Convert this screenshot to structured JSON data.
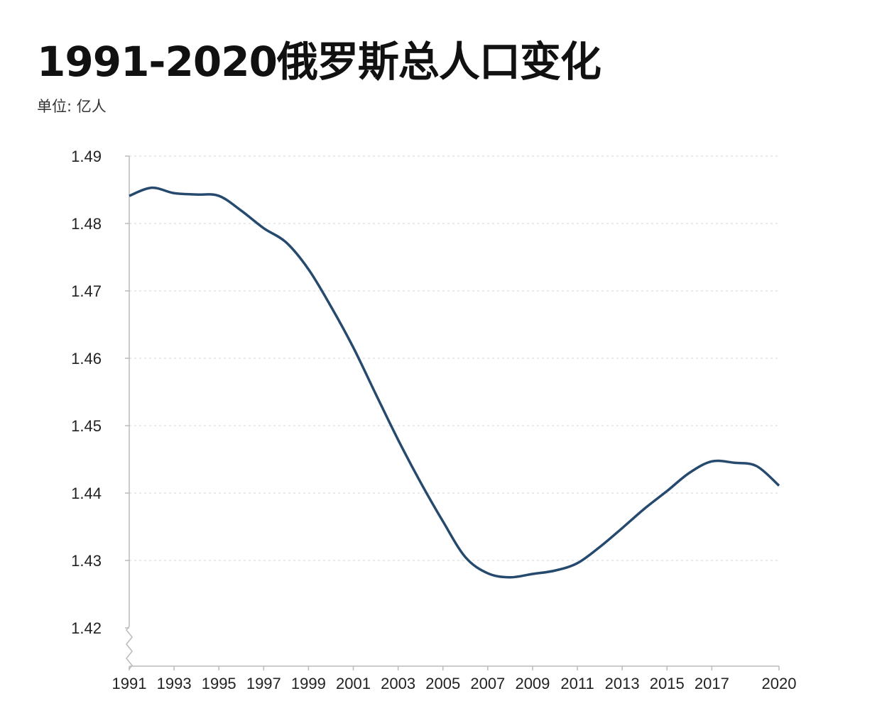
{
  "title": "1991-2020俄罗斯总人口变化",
  "unit_label": "单位: 亿人",
  "chart_data": {
    "type": "line",
    "title": "1991-2020俄罗斯总人口变化",
    "ylabel": "单位: 亿人",
    "xlabel": "",
    "x": [
      1991,
      1992,
      1993,
      1994,
      1995,
      1996,
      1997,
      1998,
      1999,
      2000,
      2001,
      2002,
      2003,
      2004,
      2005,
      2006,
      2007,
      2008,
      2009,
      2010,
      2011,
      2012,
      2013,
      2014,
      2015,
      2016,
      2017,
      2018,
      2019,
      2020
    ],
    "series": [
      {
        "name": "俄罗斯总人口",
        "color": "#264a6e",
        "values": [
          1.4841,
          1.4853,
          1.4845,
          1.4843,
          1.4841,
          1.4819,
          1.4793,
          1.4772,
          1.4732,
          1.4677,
          1.4616,
          1.4547,
          1.4479,
          1.4416,
          1.4358,
          1.4305,
          1.4281,
          1.4275,
          1.428,
          1.4285,
          1.4296,
          1.432,
          1.4348,
          1.4377,
          1.4403,
          1.443,
          1.4447,
          1.4445,
          1.444,
          1.4411
        ]
      }
    ],
    "xticks": [
      "1991",
      "1993",
      "1995",
      "1997",
      "1999",
      "2001",
      "2003",
      "2005",
      "2007",
      "2009",
      "2011",
      "2013",
      "2015",
      "2017",
      "2020"
    ],
    "yticks": [
      "1.42",
      "1.43",
      "1.44",
      "1.45",
      "1.46",
      "1.47",
      "1.48",
      "1.49"
    ],
    "ylim": [
      1.4143,
      1.49
    ],
    "xlim": [
      1991,
      2020
    ],
    "grid": true,
    "axis_break": true
  }
}
